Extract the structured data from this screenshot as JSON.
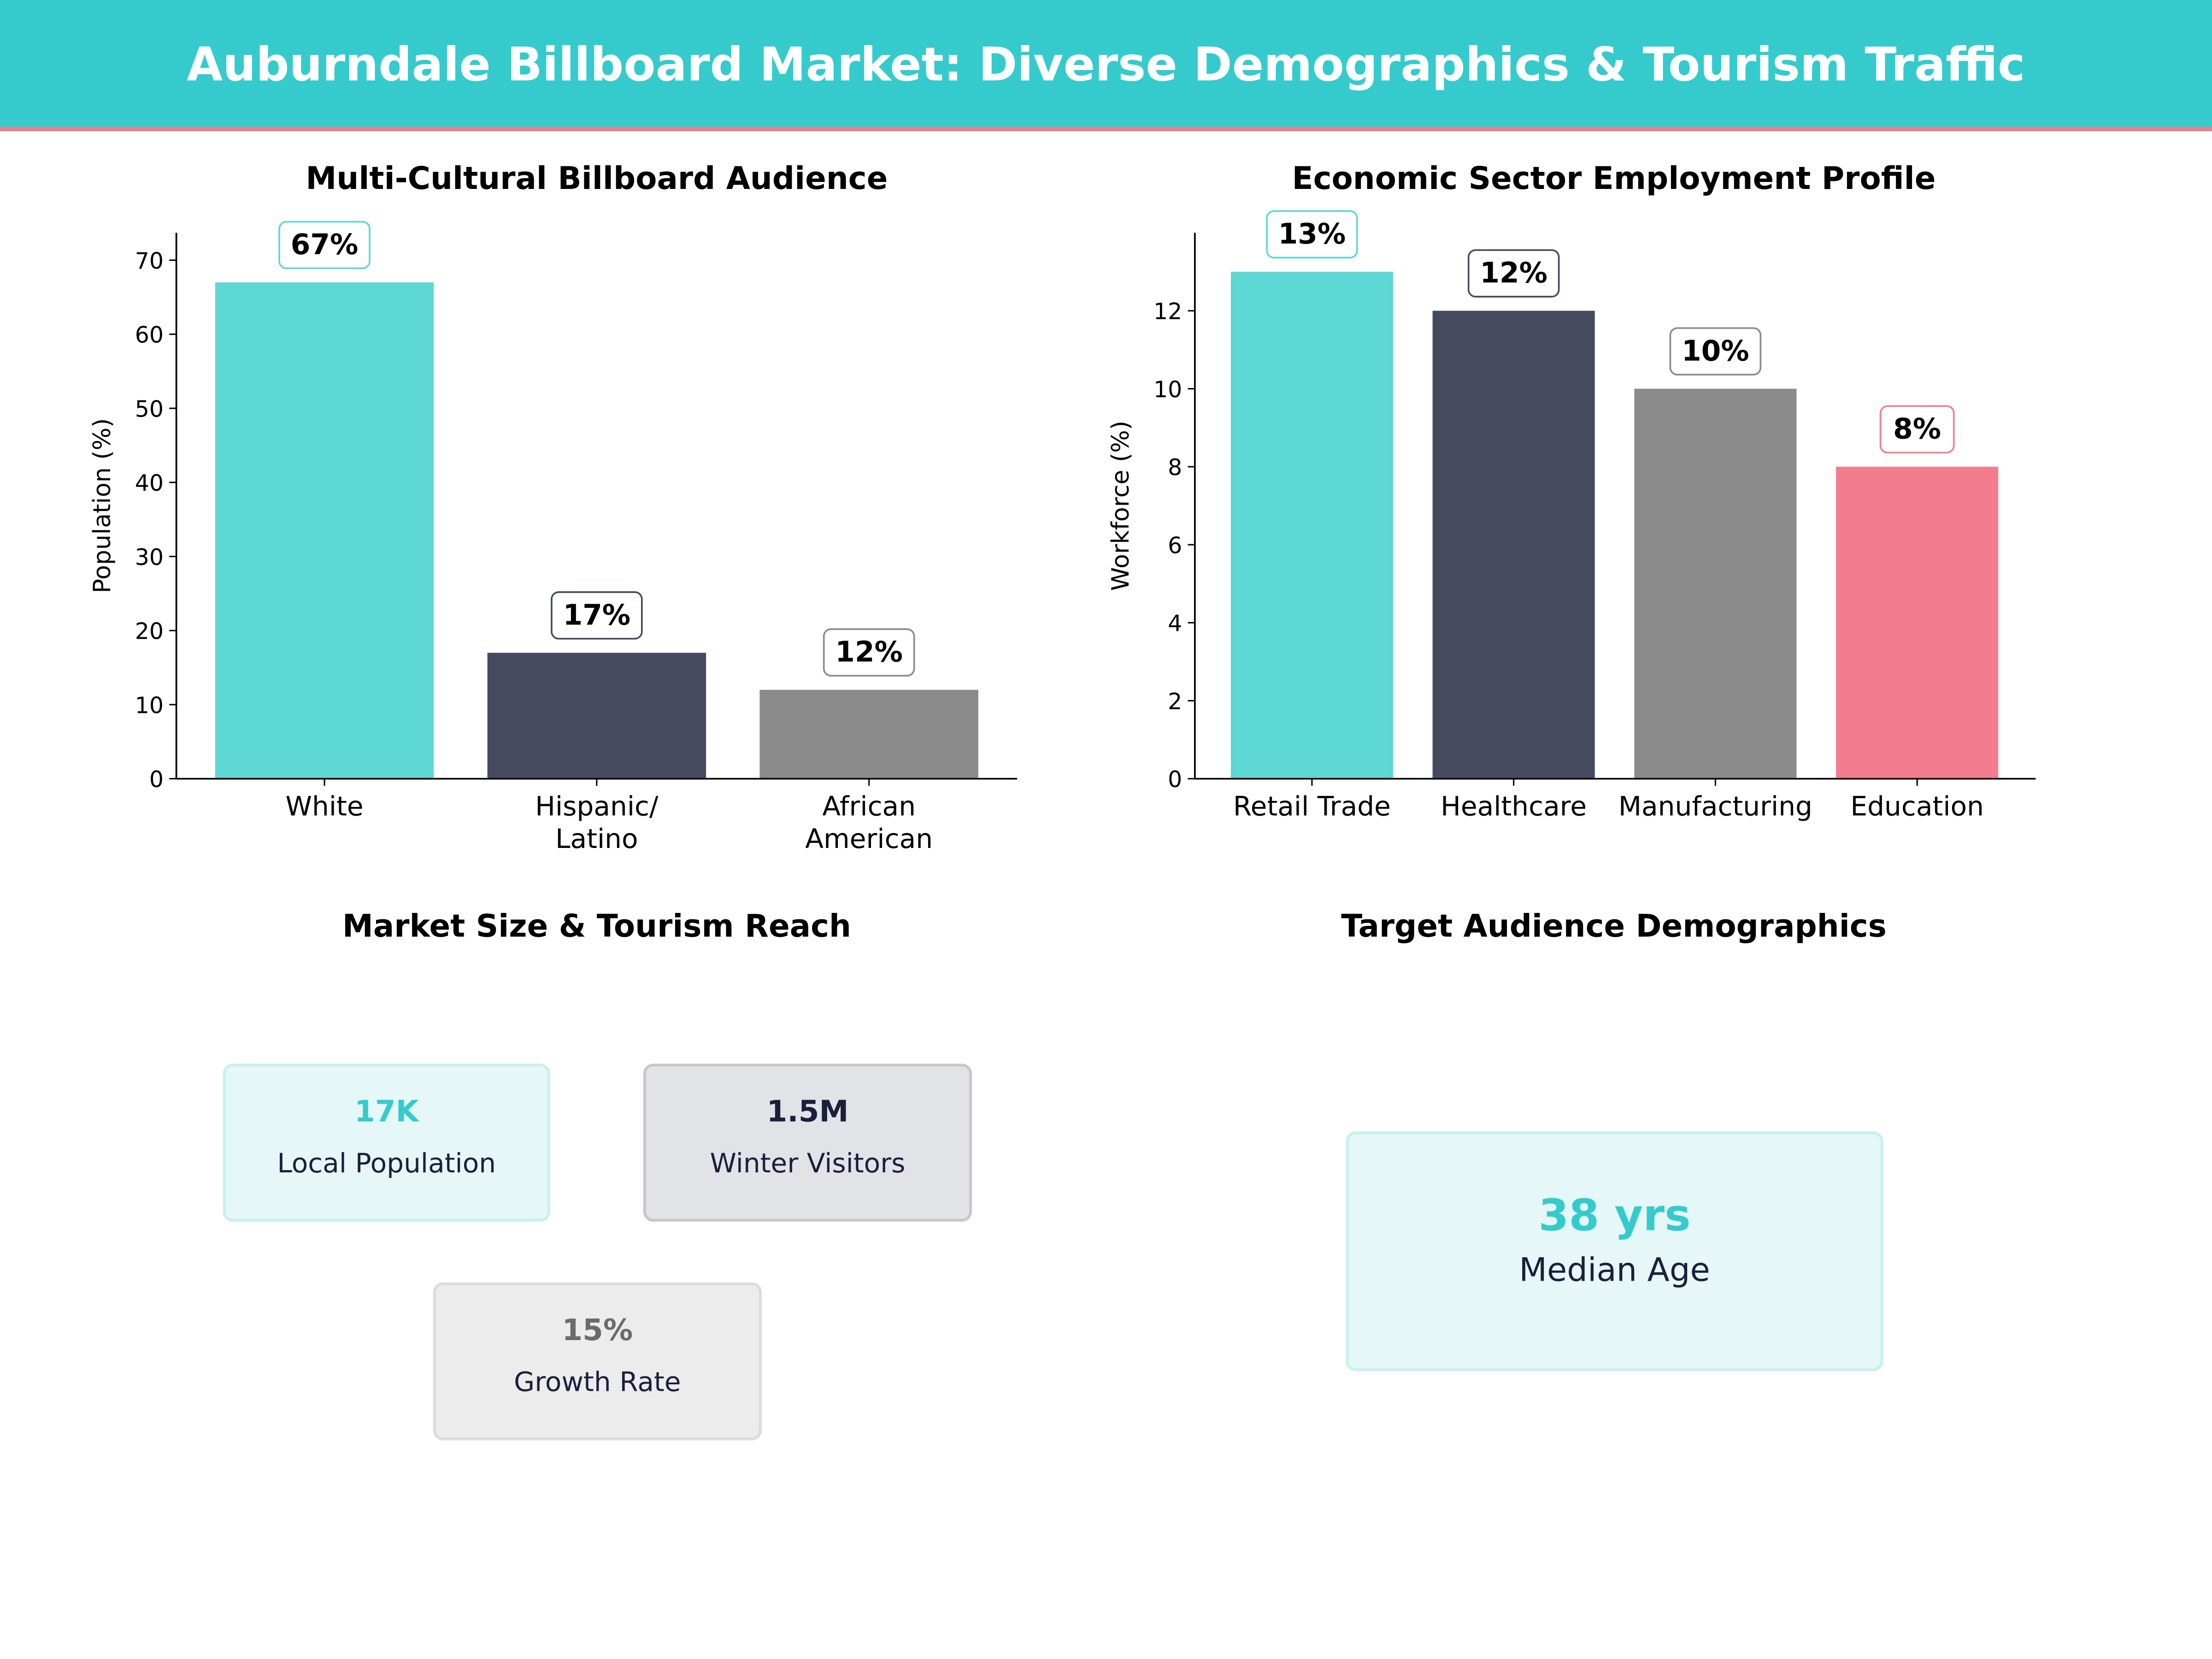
{
  "header": {
    "title": "Auburndale Billboard Market: Diverse Demographics & Tourism Traffic"
  },
  "colors": {
    "teal": "#35CBCC",
    "teal_light": "#5DD8D4",
    "navy": "#454A5F",
    "gray": "#8B8B8B",
    "pink": "#F47C8F"
  },
  "chart_data": [
    {
      "type": "bar",
      "title": "Multi-Cultural Billboard Audience",
      "ylabel": "Population (%)",
      "xlabel": "",
      "categories": [
        "White",
        "Hispanic/\nLatino",
        "African\nAmerican"
      ],
      "category_lines": [
        [
          "White"
        ],
        [
          "Hispanic/",
          "Latino"
        ],
        [
          "African",
          "American"
        ]
      ],
      "values": [
        67,
        17,
        12
      ],
      "data_labels": [
        "67%",
        "17%",
        "12%"
      ],
      "colors": [
        "#5DD8D4",
        "#454A5F",
        "#8B8B8B"
      ],
      "ylim": [
        0,
        73.7
      ],
      "yticks": [
        0,
        10,
        20,
        30,
        40,
        50,
        60,
        70
      ],
      "grid": false
    },
    {
      "type": "bar",
      "title": "Economic Sector Employment Profile",
      "ylabel": "Workforce (%)",
      "xlabel": "",
      "categories": [
        "Retail Trade",
        "Healthcare",
        "Manufacturing",
        "Education"
      ],
      "category_lines": [
        [
          "Retail Trade"
        ],
        [
          "Healthcare"
        ],
        [
          "Manufacturing"
        ],
        [
          "Education"
        ]
      ],
      "values": [
        13,
        12,
        10,
        8
      ],
      "data_labels": [
        "13%",
        "12%",
        "10%",
        "8%"
      ],
      "colors": [
        "#5DD8D4",
        "#454A5F",
        "#8B8B8B",
        "#F47C8F"
      ],
      "ylim": [
        0,
        14
      ],
      "yticks": [
        0,
        2,
        4,
        6,
        8,
        10,
        12
      ],
      "grid": false
    }
  ],
  "market": {
    "title": "Market Size & Tourism Reach",
    "cards": [
      {
        "value": "17K",
        "label": "Local Population"
      },
      {
        "value": "1.5M",
        "label": "Winter Visitors"
      },
      {
        "value": "15%",
        "label": "Growth Rate"
      }
    ]
  },
  "demographics": {
    "title": "Target Audience Demographics",
    "value": "38 yrs",
    "label": "Median Age"
  }
}
